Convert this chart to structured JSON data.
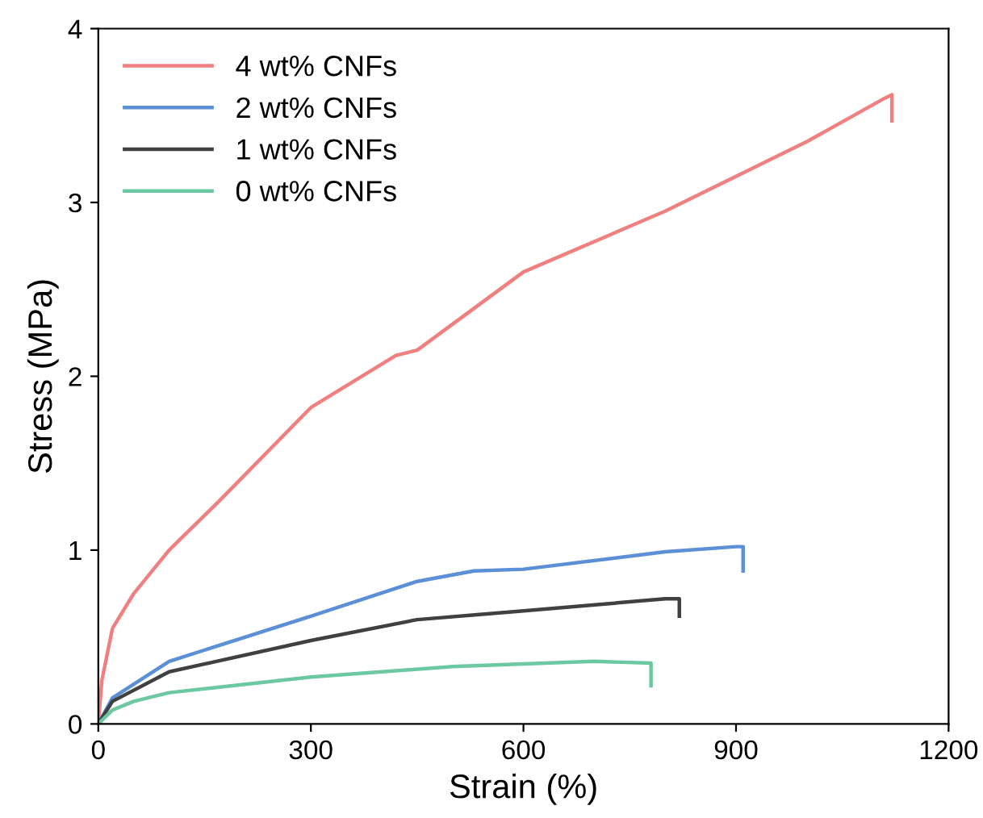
{
  "chart_data": {
    "type": "line",
    "xlabel": "Strain (%)",
    "ylabel": "Stress (MPa)",
    "xlim": [
      0,
      1200
    ],
    "ylim": [
      0,
      4
    ],
    "xticks": [
      0,
      300,
      600,
      900,
      1200
    ],
    "yticks": [
      0,
      1,
      2,
      3,
      4
    ],
    "grid": false,
    "legend": "top left",
    "marker": "none",
    "line_style": "solid",
    "series": [
      {
        "name": "4 wt% CNFs",
        "color": "#f08080",
        "x": [
          0,
          5,
          20,
          50,
          100,
          170,
          300,
          420,
          450,
          600,
          800,
          1000,
          1110,
          1120,
          1120
        ],
        "values": [
          0,
          0.25,
          0.55,
          0.75,
          1.0,
          1.28,
          1.82,
          2.12,
          2.15,
          2.6,
          2.95,
          3.35,
          3.6,
          3.62,
          3.47
        ]
      },
      {
        "name": "2 wt% CNFs",
        "color": "#5b8fd6",
        "x": [
          0,
          20,
          100,
          300,
          450,
          530,
          600,
          800,
          900,
          910,
          910
        ],
        "values": [
          0,
          0.15,
          0.36,
          0.62,
          0.82,
          0.88,
          0.89,
          0.99,
          1.02,
          1.02,
          0.88
        ]
      },
      {
        "name": "1 wt% CNFs",
        "color": "#404040",
        "x": [
          0,
          20,
          100,
          300,
          450,
          600,
          800,
          820,
          820
        ],
        "values": [
          0,
          0.13,
          0.3,
          0.48,
          0.6,
          0.65,
          0.72,
          0.72,
          0.62
        ]
      },
      {
        "name": "0 wt% CNFs",
        "color": "#6cc8a0",
        "x": [
          0,
          20,
          50,
          100,
          300,
          500,
          700,
          780,
          780
        ],
        "values": [
          0,
          0.08,
          0.13,
          0.18,
          0.27,
          0.33,
          0.36,
          0.35,
          0.22
        ]
      }
    ]
  }
}
